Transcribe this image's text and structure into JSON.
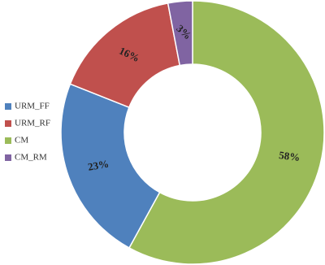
{
  "chart_data": {
    "type": "donut",
    "categories": [
      "URM_FF",
      "URM_RF",
      "CM",
      "CM_RM"
    ],
    "values": [
      23,
      16,
      58,
      3
    ],
    "value_labels": [
      "23%",
      "16%",
      "58%",
      "3%"
    ],
    "colors": [
      "#4f81bd",
      "#c0504d",
      "#9bbb59",
      "#8064a2"
    ],
    "legend": "left"
  }
}
